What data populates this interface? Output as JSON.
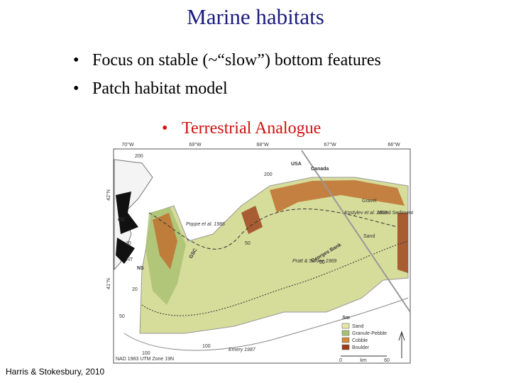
{
  "title": "Marine habitats",
  "bullets": [
    "Focus on stable (~“slow”) bottom features",
    "Patch habitat model"
  ],
  "sub_bullet": "Terrestrial Analogue",
  "citation": "Harris & Stokesbury, 2010",
  "map": {
    "longitudes": [
      "70°W",
      "69°W",
      "68°W",
      "67°W",
      "66°W"
    ],
    "latitudes": [
      "42°N",
      "41°N"
    ],
    "places": [
      "USA",
      "Canada",
      "CC",
      "NS",
      "NT",
      "GSC",
      "Georges Bank"
    ],
    "sources": [
      "Poppe et al. 1986",
      "Kostylev et al. 2005",
      "Pratt & Schlee 1969",
      "Emery 1987"
    ],
    "sediment_labels": [
      "Gravel",
      "Mixed Sediment",
      "Sand"
    ],
    "depths": [
      "200",
      "200",
      "100",
      "50",
      "10",
      "20",
      "50",
      "100",
      "50"
    ],
    "legend": {
      "title": "Sm",
      "items": [
        {
          "label": "Sand",
          "color": "#e6e6a6"
        },
        {
          "label": "Granule-Pebble",
          "color": "#a9c172"
        },
        {
          "label": "Cobble",
          "color": "#d4883a"
        },
        {
          "label": "Boulder",
          "color": "#9c3c18"
        }
      ]
    },
    "scale": [
      "0",
      "km",
      "60"
    ],
    "projection": "NAD 1983 UTM Zone 19N"
  }
}
